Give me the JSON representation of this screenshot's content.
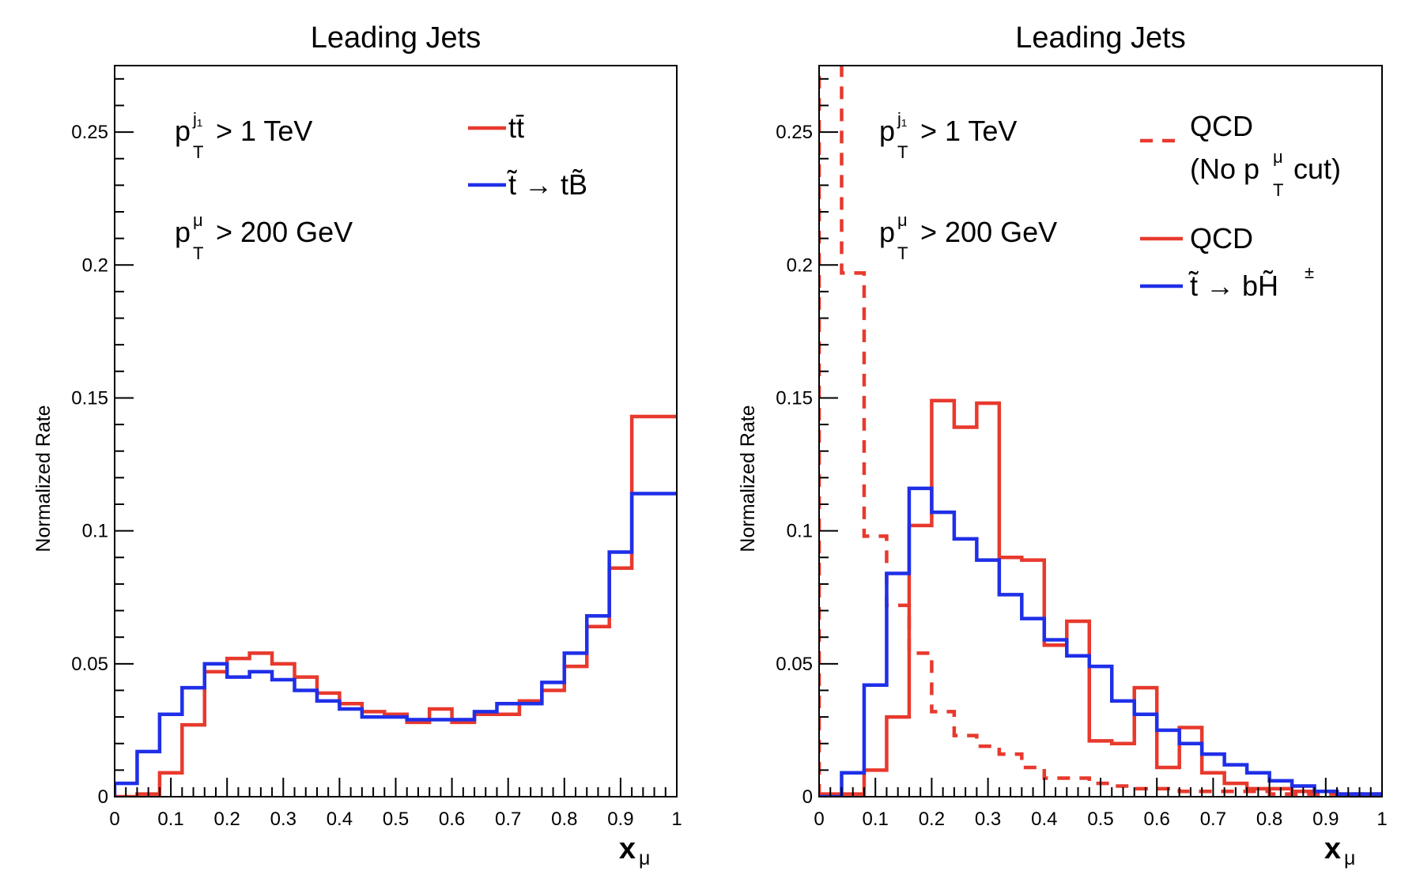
{
  "chart_data": [
    {
      "type": "histogram",
      "title": "Leading Jets",
      "xlabel": "x",
      "xlabel_sub": "μ",
      "ylabel": "Normalized Rate",
      "xlim": [
        0,
        1
      ],
      "ylim": [
        0,
        0.275
      ],
      "x_ticks": [
        "0",
        "0.1",
        "0.2",
        "0.3",
        "0.4",
        "0.5",
        "0.6",
        "0.7",
        "0.8",
        "0.9",
        "1"
      ],
      "y_ticks": [
        "0",
        "0.05",
        "0.1",
        "0.15",
        "0.2",
        "0.25"
      ],
      "bin_edges": [
        0,
        0.04,
        0.08,
        0.12,
        0.16,
        0.2,
        0.24,
        0.28,
        0.32,
        0.36,
        0.4,
        0.44,
        0.48,
        0.52,
        0.56,
        0.6,
        0.64,
        0.68,
        0.72,
        0.76,
        0.8,
        0.84,
        0.88,
        0.92,
        0.96,
        1.0
      ],
      "annotations": [
        {
          "base": "p",
          "sub": "T",
          "sup": "j₁",
          "text": "> 1 TeV"
        },
        {
          "base": "p",
          "sub": "T",
          "sup": "μ",
          "text": "> 200 GeV"
        }
      ],
      "series": [
        {
          "name": "tt̄",
          "legend_text": "tt̄",
          "color": "#e8392d",
          "style": "solid",
          "values": [
            0.0,
            0.001,
            0.009,
            0.027,
            0.047,
            0.052,
            0.054,
            0.05,
            0.045,
            0.039,
            0.035,
            0.032,
            0.031,
            0.028,
            0.033,
            0.028,
            0.031,
            0.031,
            0.036,
            0.04,
            0.049,
            0.064,
            0.086,
            0.143,
            0.143
          ]
        },
        {
          "name": "t̃ → tB̃",
          "legend_text": "t̃ → tB̃",
          "color": "#1f2fe8",
          "style": "solid",
          "values": [
            0.005,
            0.017,
            0.031,
            0.041,
            0.05,
            0.045,
            0.047,
            0.044,
            0.04,
            0.036,
            0.033,
            0.03,
            0.03,
            0.029,
            0.029,
            0.029,
            0.032,
            0.035,
            0.035,
            0.043,
            0.054,
            0.068,
            0.092,
            0.114,
            0.114
          ]
        }
      ]
    },
    {
      "type": "histogram",
      "title": "Leading Jets",
      "xlabel": "x",
      "xlabel_sub": "μ",
      "ylabel": "Normalized Rate",
      "xlim": [
        0,
        1
      ],
      "ylim": [
        0,
        0.275
      ],
      "x_ticks": [
        "0",
        "0.1",
        "0.2",
        "0.3",
        "0.4",
        "0.5",
        "0.6",
        "0.7",
        "0.8",
        "0.9",
        "1"
      ],
      "y_ticks": [
        "0",
        "0.05",
        "0.1",
        "0.15",
        "0.2",
        "0.25"
      ],
      "bin_edges": [
        0,
        0.04,
        0.08,
        0.12,
        0.16,
        0.2,
        0.24,
        0.28,
        0.32,
        0.36,
        0.4,
        0.44,
        0.48,
        0.52,
        0.56,
        0.6,
        0.64,
        0.68,
        0.72,
        0.76,
        0.8,
        0.84,
        0.88,
        0.92,
        0.96,
        1.0
      ],
      "annotations": [
        {
          "base": "p",
          "sub": "T",
          "sup": "j₁",
          "text": "> 1 TeV"
        },
        {
          "base": "p",
          "sub": "T",
          "sup": "μ",
          "text": "> 200 GeV"
        }
      ],
      "series": [
        {
          "name": "QCD (No pTμ cut)",
          "legend_text": "QCD",
          "legend_line2_pre": "(No p",
          "legend_line2_sub": "T",
          "legend_line2_sup": "μ",
          "legend_line2_post": " cut)",
          "color": "#e8392d",
          "style": "dashed",
          "values": [
            0.3,
            0.197,
            0.098,
            0.072,
            0.054,
            0.032,
            0.023,
            0.019,
            0.016,
            0.011,
            0.007,
            0.007,
            0.005,
            0.004,
            0.003,
            0.003,
            0.002,
            0.002,
            0.002,
            0.002,
            0.001,
            0.001,
            0.001,
            0.001,
            0.001
          ]
        },
        {
          "name": "QCD",
          "legend_text": "QCD",
          "color": "#e8392d",
          "style": "solid",
          "values": [
            0.001,
            0.001,
            0.01,
            0.03,
            0.102,
            0.149,
            0.139,
            0.148,
            0.09,
            0.089,
            0.057,
            0.066,
            0.021,
            0.02,
            0.041,
            0.011,
            0.026,
            0.009,
            0.005,
            0.003,
            0.003,
            0.002,
            0.002,
            0.001,
            0.001
          ]
        },
        {
          "name": "t̃ → bH̃±",
          "legend_text": "t̃ → bH̃",
          "legend_sup": "±",
          "color": "#1f2fe8",
          "style": "solid",
          "values": [
            0.0,
            0.009,
            0.042,
            0.084,
            0.116,
            0.107,
            0.097,
            0.089,
            0.076,
            0.067,
            0.059,
            0.053,
            0.049,
            0.036,
            0.031,
            0.025,
            0.02,
            0.016,
            0.012,
            0.009,
            0.006,
            0.004,
            0.002,
            0.001,
            0.001
          ]
        }
      ]
    }
  ]
}
